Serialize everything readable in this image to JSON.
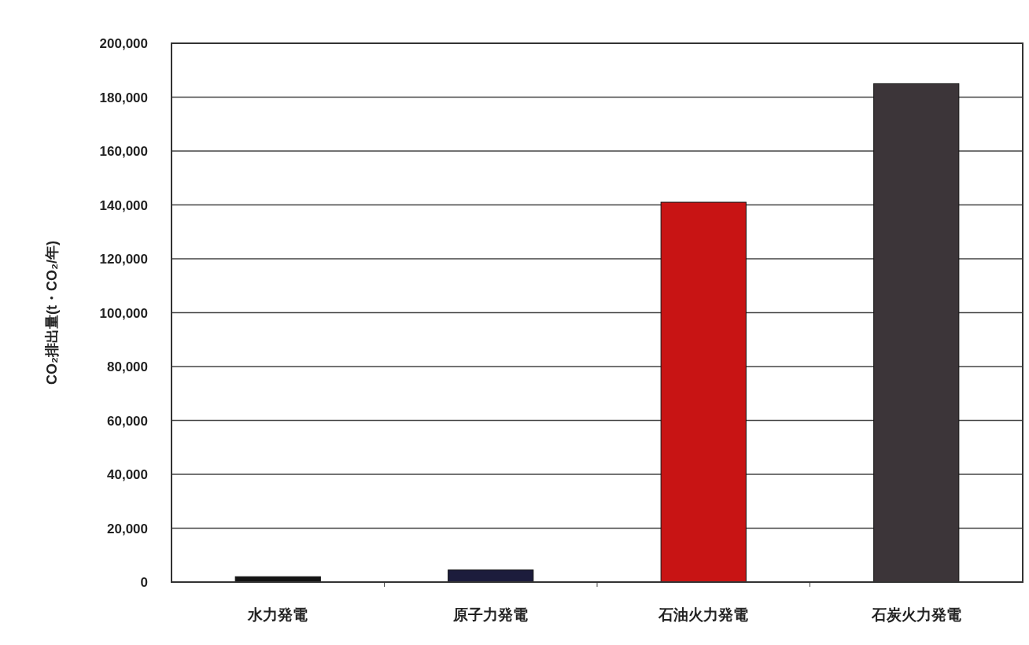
{
  "chart_data": {
    "type": "bar",
    "ylabel": "CO₂排出量(t・CO₂/年)",
    "categories": [
      "水力発電",
      "原子力発電",
      "石油火力発電",
      "石炭火力発電"
    ],
    "values": [
      2000,
      4500,
      141000,
      185000
    ],
    "colors": [
      "#141414",
      "#1c1c3c",
      "#c81414",
      "#3c3539"
    ],
    "ylim": [
      0,
      200000
    ],
    "yticks": [
      {
        "value": 0,
        "label": "0"
      },
      {
        "value": 20000,
        "label": "20,000"
      },
      {
        "value": 40000,
        "label": "40,000"
      },
      {
        "value": 60000,
        "label": "60,000"
      },
      {
        "value": 80000,
        "label": "80,000"
      },
      {
        "value": 100000,
        "label": "100,000"
      },
      {
        "value": 120000,
        "label": "120,000"
      },
      {
        "value": 140000,
        "label": "140,000"
      },
      {
        "value": 160000,
        "label": "160,000"
      },
      {
        "value": 180000,
        "label": "180,000"
      },
      {
        "value": 200000,
        "label": "200,000"
      }
    ],
    "grid": "y"
  }
}
